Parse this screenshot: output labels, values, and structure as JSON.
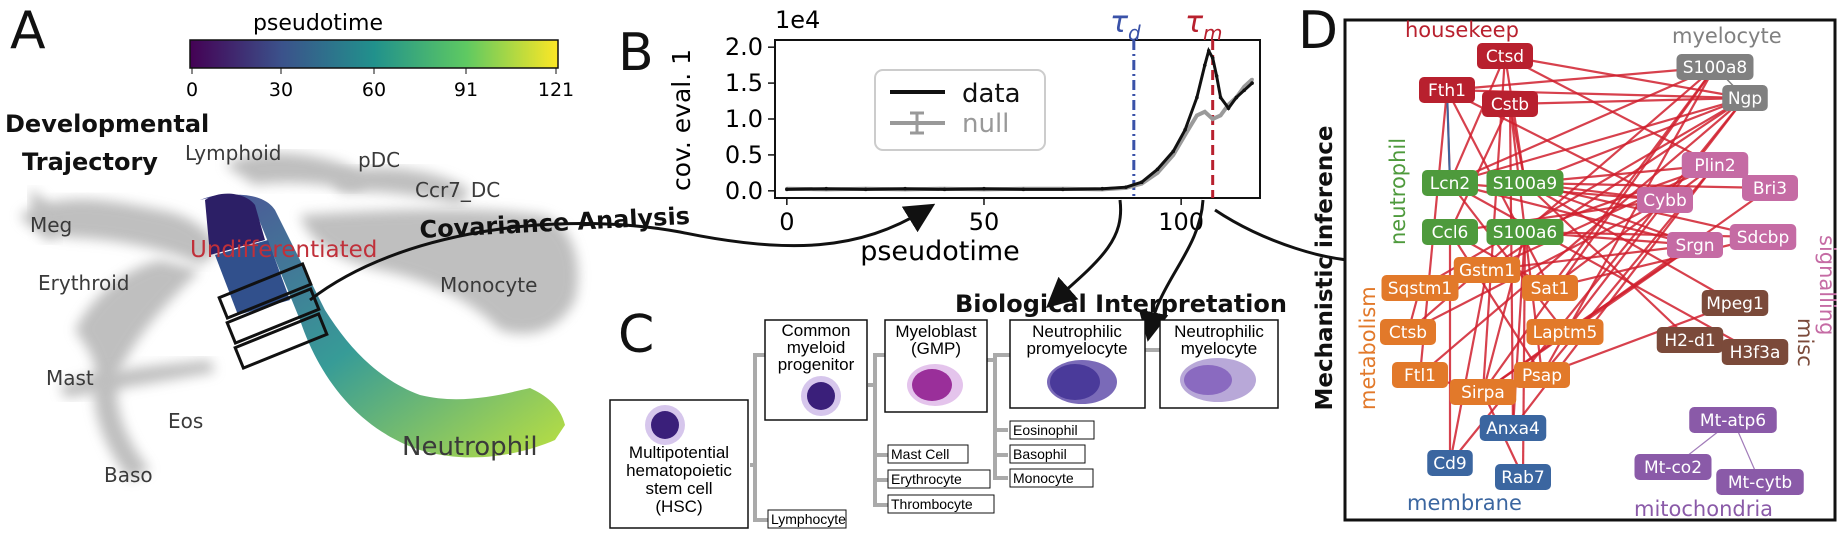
{
  "panels": {
    "A": "A",
    "B": "B",
    "C": "C",
    "D": "D"
  },
  "panelA": {
    "colorbar_title": "pseudotime",
    "colorbar_ticks": [
      "0",
      "30",
      "60",
      "91",
      "121"
    ],
    "trajectory_title_1": "Developmental",
    "trajectory_title_2": "Trajectory",
    "labels": {
      "lymphoid": "Lymphoid",
      "pdc": "pDC",
      "ccr7": "Ccr7_DC",
      "meg": "Meg",
      "erythroid": "Erythroid",
      "undiff": "Undifferentiated",
      "monocyte": "Monocyte",
      "mast": "Mast",
      "eos": "Eos",
      "baso": "Baso",
      "neutrophil": "Neutrophil"
    },
    "covariance_label": "Covariance Analysis"
  },
  "chart_data": {
    "type": "line",
    "xlabel": "pseudotime",
    "ylabel": "cov. eval. 1",
    "y_multiplier": "1e4",
    "xlim": [
      -3,
      120
    ],
    "ylim": [
      -0.1,
      2.1
    ],
    "x_ticks": [
      "0",
      "50",
      "100"
    ],
    "y_ticks": [
      "0.0",
      "0.5",
      "1.0",
      "1.5",
      "2.0"
    ],
    "legend": [
      "data",
      "null"
    ],
    "legend_position": "center",
    "annotations": {
      "tau_d": "τ",
      "tau_d_sub": "d",
      "tau_m": "τ",
      "tau_m_sub": "m"
    },
    "tau_d_x": 88,
    "tau_m_x": 108,
    "series": [
      {
        "name": "data",
        "color": "#111111",
        "x": [
          0,
          10,
          20,
          30,
          40,
          50,
          60,
          70,
          80,
          86,
          90,
          94,
          98,
          101,
          104,
          106,
          107,
          108,
          109,
          110,
          112,
          114,
          116,
          118
        ],
        "y": [
          0.02,
          0.03,
          0.02,
          0.03,
          0.02,
          0.03,
          0.02,
          0.02,
          0.03,
          0.05,
          0.12,
          0.3,
          0.55,
          0.85,
          1.3,
          1.75,
          1.95,
          1.85,
          1.6,
          1.3,
          1.15,
          1.3,
          1.4,
          1.5
        ]
      },
      {
        "name": "null",
        "color": "#9a9a9a",
        "x": [
          0,
          10,
          20,
          30,
          40,
          50,
          60,
          70,
          80,
          86,
          90,
          94,
          98,
          101,
          104,
          106,
          108,
          110,
          112,
          114,
          116,
          118
        ],
        "y": [
          0.03,
          0.02,
          0.03,
          0.02,
          0.03,
          0.02,
          0.03,
          0.03,
          0.02,
          0.04,
          0.1,
          0.25,
          0.5,
          0.78,
          1.05,
          1.1,
          1.0,
          1.05,
          1.2,
          1.3,
          1.45,
          1.55
        ]
      }
    ]
  },
  "panelB_extra": {
    "bio_interp": "Biological Interpretation"
  },
  "panelC": {
    "hsc": [
      "Multipotential",
      "hematopoietic",
      "stem cell",
      "(HSC)"
    ],
    "cmp": [
      "Common",
      "myeloid",
      "progenitor"
    ],
    "gmp": [
      "Myeloblast",
      "(GMP)"
    ],
    "promyelocyte": [
      "Neutrophilic",
      "promyelocyte"
    ],
    "myelocyte": [
      "Neutrophilic",
      "myelocyte"
    ],
    "lymphocyte": "Lymphocyte",
    "mast_cell": "Mast Cell",
    "erythrocyte": "Erythrocyte",
    "thrombocyte": "Thrombocyte",
    "eosinophil": "Eosinophil",
    "basophil": "Basophil",
    "monocyte": "Monocyte"
  },
  "panelD": {
    "side_label": "Mechanistic inference",
    "groups": {
      "housekeep": "housekeep",
      "myelocyte": "myelocyte",
      "neutrophil": "neutrophil",
      "signalling": "signalling",
      "metabolism": "metabolism",
      "misc": "misc",
      "membrane": "membrane",
      "mitochondria": "mitochondria"
    },
    "colors": {
      "housekeep": "#b8202e",
      "myelocyte": "#808080",
      "neutrophil": "#4e9a3c",
      "signalling": "#c56ba4",
      "metabolism": "#e2792a",
      "misc": "#7b4a3a",
      "membrane": "#3b66a0",
      "mitochondria": "#8a5aa8",
      "edge": "#d0202e"
    },
    "nodes": {
      "Ctsd": "Ctsd",
      "Fth1": "Fth1",
      "Cstb": "Cstb",
      "S100a8": "S100a8",
      "Ngp": "Ngp",
      "Lcn2": "Lcn2",
      "S100a9": "S100a9",
      "Ccl6": "Ccl6",
      "S100a6": "S100a6",
      "Plin2": "Plin2",
      "Bri3": "Bri3",
      "Cybb": "Cybb",
      "Srgn": "Srgn",
      "Sdcbp": "Sdcbp",
      "Gstm1": "Gstm1",
      "Sqstm1": "Sqstm1",
      "Sat1": "Sat1",
      "Ctsb": "Ctsb",
      "Laptm5": "Laptm5",
      "Ftl1": "Ftl1",
      "Psap": "Psap",
      "Sirpa": "Sirpa",
      "Mpeg1": "Mpeg1",
      "H2d1": "H2-d1",
      "H3f3a": "H3f3a",
      "Anxa4": "Anxa4",
      "Cd9": "Cd9",
      "Rab7": "Rab7",
      "Mtatp6": "Mt-atp6",
      "Mtco2": "Mt-co2",
      "Mtcytb": "Mt-cytb"
    }
  }
}
